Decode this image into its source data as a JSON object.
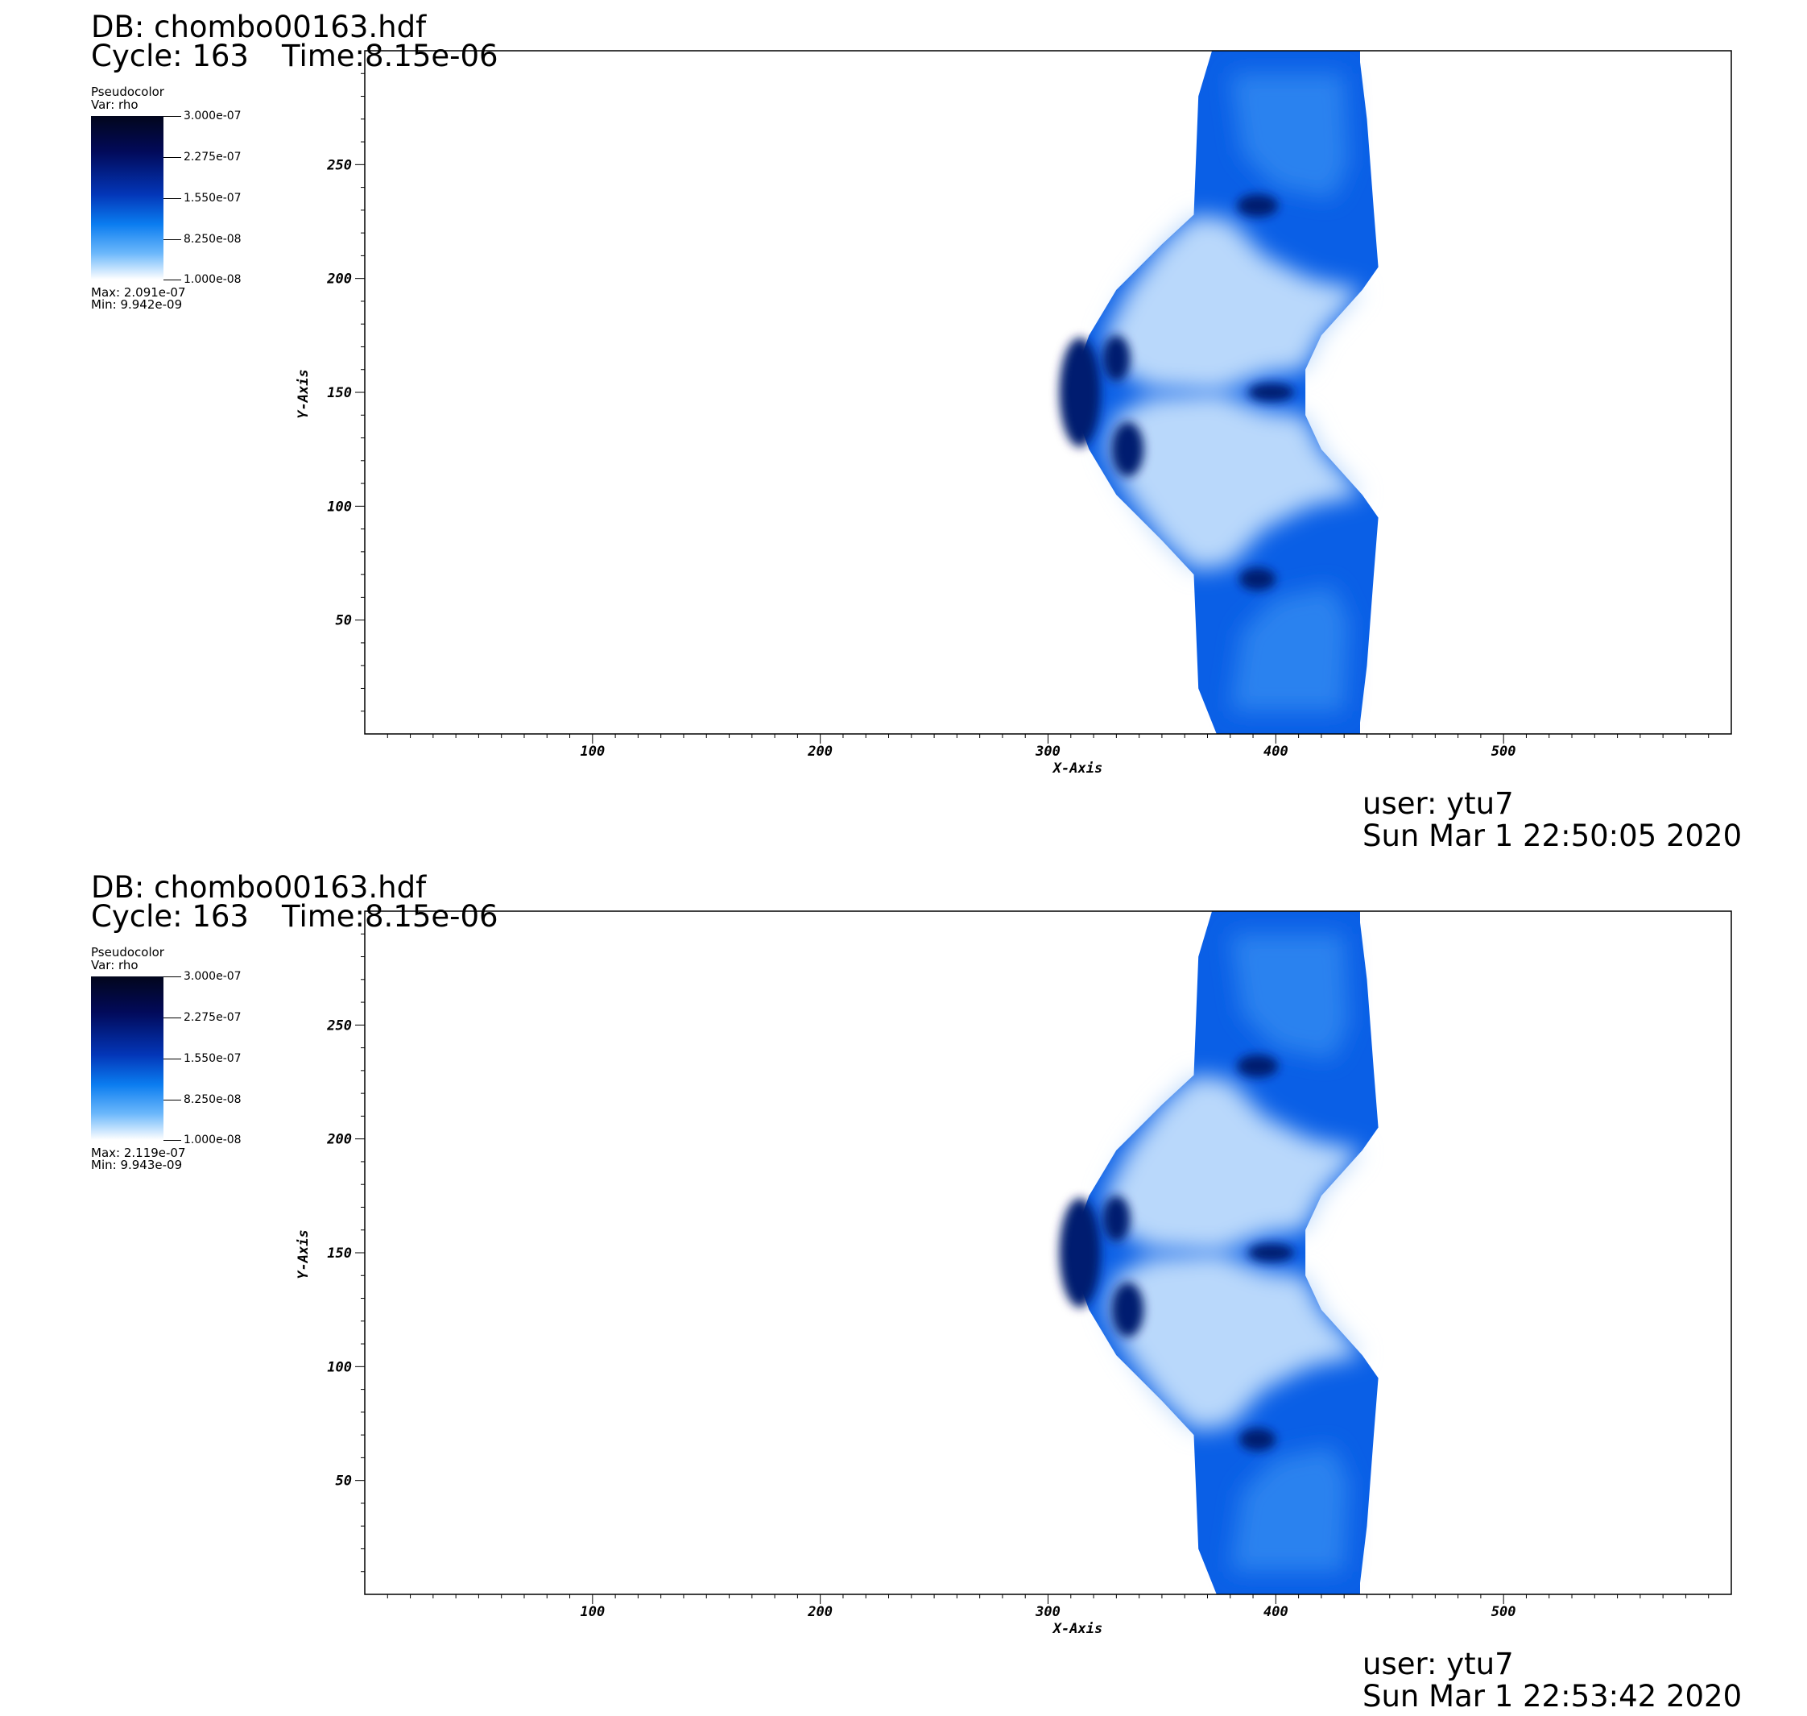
{
  "chart_data": [
    {
      "type": "heatmap",
      "db": "DB: chombo00163.hdf",
      "cycle": "Cycle: 163",
      "time": "Time:8.15e-06",
      "legend": {
        "title": "Pseudocolor",
        "var": "Var: rho",
        "ticks": [
          "3.000e-07",
          "2.275e-07",
          "1.550e-07",
          "8.250e-08",
          "1.000e-08"
        ],
        "max": "Max: 2.091e-07",
        "min": "Min: 9.942e-09",
        "colormap": [
          "#02061c",
          "#020a5a",
          "#0336b8",
          "#0a7cf0",
          "#6cb8fb",
          "#ffffff"
        ]
      },
      "xlabel": "X-Axis",
      "ylabel": "Y-Axis",
      "xlim": [
        0,
        600
      ],
      "ylim": [
        0,
        300
      ],
      "xticks": [
        "100",
        "200",
        "300",
        "400",
        "500"
      ],
      "yticks": [
        "50",
        "100",
        "150",
        "200",
        "250"
      ],
      "user": "user: ytu7",
      "date": "Sun Mar  1 22:50:05 2020"
    },
    {
      "type": "heatmap",
      "db": "DB: chombo00163.hdf",
      "cycle": "Cycle: 163",
      "time": "Time:8.15e-06",
      "legend": {
        "title": "Pseudocolor",
        "var": "Var: rho",
        "ticks": [
          "3.000e-07",
          "2.275e-07",
          "1.550e-07",
          "8.250e-08",
          "1.000e-08"
        ],
        "max": "Max: 2.119e-07",
        "min": "Min: 9.943e-09",
        "colormap": [
          "#02061c",
          "#020a5a",
          "#0336b8",
          "#0a7cf0",
          "#6cb8fb",
          "#ffffff"
        ]
      },
      "xlabel": "X-Axis",
      "ylabel": "Y-Axis",
      "xlim": [
        0,
        600
      ],
      "ylim": [
        0,
        300
      ],
      "xticks": [
        "100",
        "200",
        "300",
        "400",
        "500"
      ],
      "yticks": [
        "50",
        "100",
        "150",
        "200",
        "250"
      ],
      "user": "user: ytu7",
      "date": "Sun Mar  1 22:53:42 2020"
    }
  ]
}
